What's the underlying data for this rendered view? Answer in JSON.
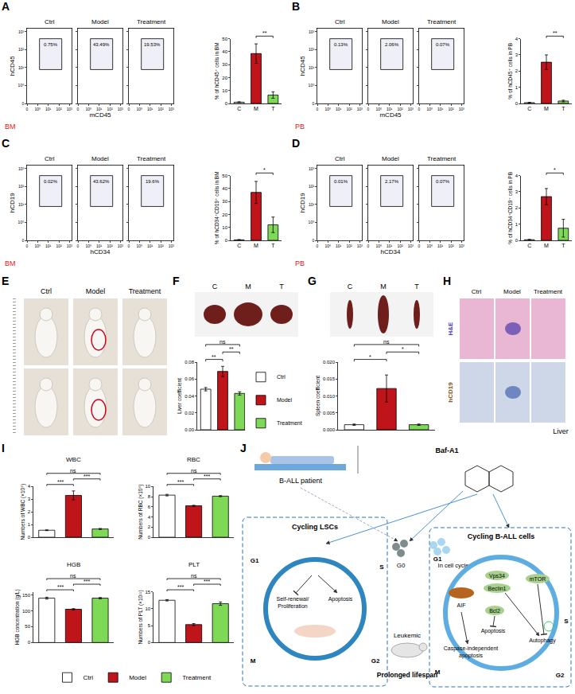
{
  "chart_data": [
    {
      "panel": "A",
      "type": "flow",
      "tissue": "BM",
      "xlabel": "mCD45",
      "ylabel": "hCD45",
      "xlim": [
        0,
        4.2
      ],
      "ylim": [
        0,
        4.2
      ],
      "xticks": [
        {
          "value": 0,
          "label": "0"
        },
        {
          "value": 1,
          "label": "10⁰"
        },
        {
          "value": 2,
          "label": "10¹"
        },
        {
          "value": 3,
          "label": "10²"
        },
        {
          "value": 4,
          "label": "10³"
        }
      ],
      "yticks": [
        {
          "value": 0,
          "label": "0"
        },
        {
          "value": 1,
          "label": "10⁰"
        },
        {
          "value": 2,
          "label": "10¹"
        },
        {
          "value": 3,
          "label": "10²"
        },
        {
          "value": 4,
          "label": "10³"
        }
      ],
      "plots": [
        {
          "title": "Ctrl",
          "gate": "0.75%"
        },
        {
          "title": "Model",
          "gate": "43.49%"
        },
        {
          "title": "Treatment",
          "gate": "19.53%"
        }
      ]
    },
    {
      "panel": "A",
      "type": "bar",
      "categories": [
        "C",
        "M",
        "T"
      ],
      "values": [
        1.0,
        38.5,
        6.5
      ],
      "errors": [
        0.3,
        7.5,
        2.5
      ],
      "colors": [
        "#ffffff",
        "#c0141b",
        "#7ed957"
      ],
      "ylabel": "% of hCD45⁺ cells in BM",
      "ylim": [
        0,
        50
      ],
      "yticks": [
        0,
        10,
        20,
        30,
        40,
        50
      ],
      "significance": [
        {
          "from": 1,
          "to": 2,
          "text": "**"
        }
      ]
    },
    {
      "panel": "B",
      "type": "flow",
      "tissue": "PB",
      "xlabel": "mCD45",
      "ylabel": "hCD45",
      "xlim": [
        0,
        4.2
      ],
      "ylim": [
        0,
        4.2
      ],
      "xticks": [
        {
          "value": 0,
          "label": "0"
        },
        {
          "value": 1,
          "label": "10⁰"
        },
        {
          "value": 2,
          "label": "10¹"
        },
        {
          "value": 3,
          "label": "10²"
        },
        {
          "value": 4,
          "label": "10³"
        }
      ],
      "yticks": [
        {
          "value": 0,
          "label": "0"
        },
        {
          "value": 1,
          "label": "10⁰"
        },
        {
          "value": 2,
          "label": "10¹"
        },
        {
          "value": 3,
          "label": "10²"
        },
        {
          "value": 4,
          "label": "10³"
        }
      ],
      "plots": [
        {
          "title": "Ctrl",
          "gate": "0.13%"
        },
        {
          "title": "Model",
          "gate": "2.06%"
        },
        {
          "title": "Treatment",
          "gate": "0.07%"
        }
      ]
    },
    {
      "panel": "B",
      "type": "bar",
      "categories": [
        "C",
        "M",
        "T"
      ],
      "values": [
        0.05,
        2.55,
        0.15
      ],
      "errors": [
        0.02,
        0.45,
        0.05
      ],
      "colors": [
        "#ffffff",
        "#c0141b",
        "#7ed957"
      ],
      "ylabel": "% of hCD45⁺ cells in PB",
      "ylim": [
        0,
        4
      ],
      "yticks": [
        0,
        1,
        2,
        3,
        4
      ],
      "significance": [
        {
          "from": 1,
          "to": 2,
          "text": "**"
        }
      ]
    },
    {
      "panel": "C",
      "type": "flow",
      "tissue": "BM",
      "xlabel": "hCD34",
      "ylabel": "hCD19",
      "xlim": [
        0,
        4.2
      ],
      "ylim": [
        0,
        4.2
      ],
      "xticks": [
        {
          "value": 0,
          "label": "0"
        },
        {
          "value": 1,
          "label": "10⁰"
        },
        {
          "value": 2,
          "label": "10¹"
        },
        {
          "value": 3,
          "label": "10²"
        },
        {
          "value": 4,
          "label": "10³"
        }
      ],
      "yticks": [
        {
          "value": 0,
          "label": "0"
        },
        {
          "value": 1,
          "label": "10⁰"
        },
        {
          "value": 2,
          "label": "10¹"
        },
        {
          "value": 3,
          "label": "10²"
        },
        {
          "value": 4,
          "label": "10³"
        }
      ],
      "plots": [
        {
          "title": "Ctrl",
          "gate": "0.02%"
        },
        {
          "title": "Model",
          "gate": "43.62%"
        },
        {
          "title": "Treatment",
          "gate": "19.6%"
        }
      ]
    },
    {
      "panel": "C",
      "type": "bar",
      "categories": [
        "C",
        "M",
        "T"
      ],
      "values": [
        0.4,
        37,
        12
      ],
      "errors": [
        0.2,
        8.5,
        6
      ],
      "colors": [
        "#ffffff",
        "#c0141b",
        "#7ed957"
      ],
      "ylabel": "% of hCD34⁺CD19⁺ cells in BM",
      "ylim": [
        0,
        50
      ],
      "yticks": [
        0,
        10,
        20,
        30,
        40,
        50
      ],
      "significance": [
        {
          "from": 1,
          "to": 2,
          "text": "*"
        }
      ]
    },
    {
      "panel": "D",
      "type": "flow",
      "tissue": "PB",
      "xlabel": "hCD34",
      "ylabel": "hCD19",
      "xlim": [
        0,
        4.2
      ],
      "ylim": [
        0,
        4.2
      ],
      "xticks": [
        {
          "value": 0,
          "label": "0"
        },
        {
          "value": 1,
          "label": "10⁰"
        },
        {
          "value": 2,
          "label": "10¹"
        },
        {
          "value": 3,
          "label": "10²"
        },
        {
          "value": 4,
          "label": "10³"
        }
      ],
      "yticks": [
        {
          "value": 0,
          "label": "0"
        },
        {
          "value": 1,
          "label": "10⁰"
        },
        {
          "value": 2,
          "label": "10¹"
        },
        {
          "value": 3,
          "label": "10²"
        },
        {
          "value": 4,
          "label": "10³"
        }
      ],
      "plots": [
        {
          "title": "Ctrl",
          "gate": "0.01%"
        },
        {
          "title": "Model",
          "gate": "2.17%"
        },
        {
          "title": "Treatment",
          "gate": "0.07%"
        }
      ]
    },
    {
      "panel": "D",
      "type": "bar",
      "categories": [
        "C",
        "M",
        "T"
      ],
      "values": [
        0.04,
        2.7,
        0.75
      ],
      "errors": [
        0.02,
        0.5,
        0.55
      ],
      "colors": [
        "#ffffff",
        "#c0141b",
        "#7ed957"
      ],
      "ylabel": "% of hCD34⁺CD19⁺ cells in PB",
      "ylim": [
        0,
        4
      ],
      "yticks": [
        0,
        1,
        2,
        3,
        4
      ],
      "significance": [
        {
          "from": 1,
          "to": 2,
          "text": "*"
        }
      ]
    },
    {
      "panel": "F",
      "type": "bar",
      "categories": [
        "Ctrl",
        "Model",
        "Treatment"
      ],
      "values": [
        0.048,
        0.069,
        0.043
      ],
      "errors": [
        0.002,
        0.006,
        0.002
      ],
      "colors": [
        "#ffffff",
        "#c0141b",
        "#7ed957"
      ],
      "ylabel": "Liver coefficient",
      "ylim": [
        0,
        0.08
      ],
      "yticks": [
        {
          "value": 0,
          "label": "0.00"
        },
        0.02,
        0.04,
        0.06,
        0.08
      ],
      "tick_labels": "y",
      "legend": "right",
      "significance": [
        {
          "from": 0,
          "to": 1,
          "text": "**"
        },
        {
          "from": 1,
          "to": 2,
          "text": "**"
        },
        {
          "from": 0,
          "to": 2,
          "text": "ns"
        }
      ]
    },
    {
      "panel": "G",
      "type": "bar",
      "categories": [
        "Ctrl",
        "Model",
        "Treatment"
      ],
      "values": [
        0.0015,
        0.0122,
        0.0015
      ],
      "errors": [
        0.0002,
        0.004,
        0.0002
      ],
      "colors": [
        "#ffffff",
        "#c0141b",
        "#7ed957"
      ],
      "ylabel": "Spleen coefficient",
      "ylim": [
        0,
        0.02
      ],
      "yticks": [
        {
          "value": 0,
          "label": "0.000"
        },
        0.005,
        {
          "value": 0.01,
          "label": "0.010"
        },
        0.015,
        {
          "value": 0.02,
          "label": "0.020"
        }
      ],
      "tick_labels": "y",
      "significance": [
        {
          "from": 0,
          "to": 1,
          "text": "*"
        },
        {
          "from": 1,
          "to": 2,
          "text": "*"
        },
        {
          "from": 0,
          "to": 2,
          "text": "ns"
        }
      ]
    },
    {
      "panel": "I",
      "type": "bar",
      "title": "WBC",
      "categories": [
        "Ctrl",
        "Model",
        "Treatment"
      ],
      "values": [
        0.55,
        3.3,
        0.65
      ],
      "errors": [
        0.03,
        0.35,
        0.04
      ],
      "colors": [
        "#ffffff",
        "#c0141b",
        "#7ed957"
      ],
      "ylabel": "Numbers of WBC (×10⁹)",
      "ylim": [
        0,
        4
      ],
      "yticks": [
        0,
        1,
        2,
        3,
        4
      ],
      "tick_labels": "y",
      "legend": "bottom",
      "significance": [
        {
          "from": 0,
          "to": 1,
          "text": "***"
        },
        {
          "from": 1,
          "to": 2,
          "text": "***"
        },
        {
          "from": 0,
          "to": 2,
          "text": "ns"
        }
      ]
    },
    {
      "panel": "I",
      "type": "bar",
      "title": "RBC",
      "categories": [
        "Ctrl",
        "Model",
        "Treatment"
      ],
      "values": [
        8.3,
        6.2,
        8.1
      ],
      "errors": [
        0.15,
        0.1,
        0.1
      ],
      "colors": [
        "#ffffff",
        "#c0141b",
        "#7ed957"
      ],
      "ylabel": "Numbers of RBC (×10⁹)",
      "ylim": [
        0,
        10
      ],
      "yticks": [
        0,
        2,
        4,
        6,
        8,
        10
      ],
      "tick_labels": "y",
      "significance": [
        {
          "from": 0,
          "to": 1,
          "text": "***"
        },
        {
          "from": 1,
          "to": 2,
          "text": "***"
        },
        {
          "from": 0,
          "to": 2,
          "text": "ns"
        }
      ]
    },
    {
      "panel": "I",
      "type": "bar",
      "title": "HGB",
      "categories": [
        "Ctrl",
        "Model",
        "Treatment"
      ],
      "values": [
        140,
        105,
        140
      ],
      "errors": [
        3,
        2,
        2
      ],
      "colors": [
        "#ffffff",
        "#c0141b",
        "#7ed957"
      ],
      "ylabel": "HGB concentration (g/L)",
      "ylim": [
        0,
        160
      ],
      "yticks": [
        0,
        50,
        100,
        150
      ],
      "tick_labels": "y",
      "significance": [
        {
          "from": 0,
          "to": 1,
          "text": "***"
        },
        {
          "from": 1,
          "to": 2,
          "text": "***"
        },
        {
          "from": 0,
          "to": 2,
          "text": "ns"
        }
      ]
    },
    {
      "panel": "I",
      "type": "bar",
      "title": "PLT",
      "categories": [
        "Ctrl",
        "Model",
        "Treatment"
      ],
      "values": [
        12.5,
        5.3,
        11.5
      ],
      "errors": [
        0.2,
        0.3,
        0.5
      ],
      "colors": [
        "#ffffff",
        "#c0141b",
        "#7ed957"
      ],
      "ylabel": "Numbers of PLT (×10¹¹)",
      "ylim": [
        0,
        15
      ],
      "yticks": [
        0,
        5,
        10,
        15
      ],
      "tick_labels": "y",
      "significance": [
        {
          "from": 0,
          "to": 1,
          "text": "***"
        },
        {
          "from": 1,
          "to": 2,
          "text": "***"
        },
        {
          "from": 0,
          "to": 2,
          "text": "ns"
        }
      ]
    }
  ],
  "photos": [
    {
      "panel": "E",
      "columns": [
        "Ctrl",
        "Model",
        "Treatment"
      ]
    },
    {
      "panel": "F",
      "columns": [
        "C",
        "M",
        "T"
      ]
    },
    {
      "panel": "G",
      "columns": [
        "C",
        "M",
        "T"
      ]
    },
    {
      "panel": "H",
      "columns": [
        "Ctrl",
        "Model",
        "Treatment"
      ],
      "rows": [
        "H&E",
        "hCD19"
      ],
      "caption": "Liver"
    }
  ],
  "diagram": {
    "panel": "J",
    "patient": "B-ALL patient",
    "drug": "Baf-A1",
    "left_title": "Cycling LSCs",
    "left_effects": [
      [
        "Self-renewal/",
        "Proliferation"
      ],
      [
        "Apoptosis"
      ]
    ],
    "phases": [
      "G1",
      "S",
      "G2",
      "M"
    ],
    "g0": "G0",
    "in_cycle": "In cell cycle",
    "mouse": "Leukemic",
    "outcome": "Prolonged lifespan",
    "right_title": "Cycling B-ALL cells",
    "right_nodes": {
      "aif": "AIF",
      "vps34": "Vps34",
      "beclin1": "Beclin1",
      "mtor": "mTOR",
      "bcl2": "Bcl2",
      "apoptosis": "Apoptosis",
      "autophagy": "Autophagy",
      "caspase": [
        "Caspase-independent",
        "apoptosis"
      ]
    }
  }
}
